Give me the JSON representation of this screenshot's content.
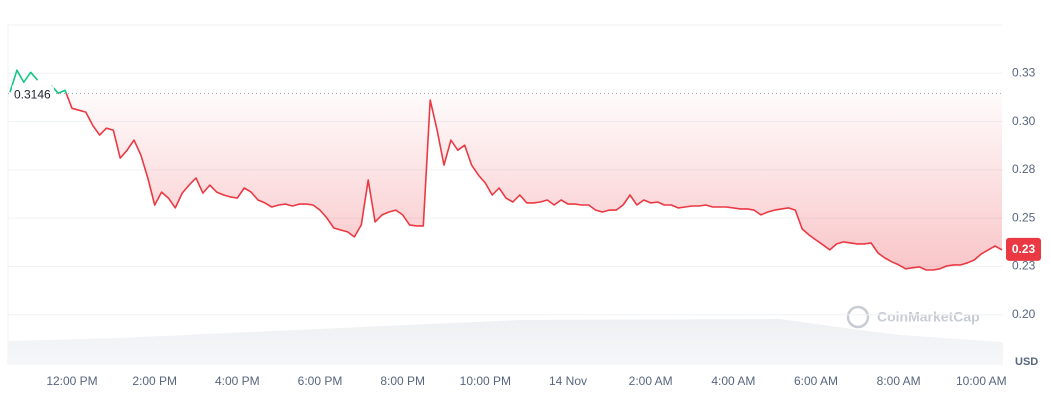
{
  "chart_data": {
    "type": "line",
    "categories": [
      null,
      null,
      null,
      null,
      null,
      null,
      null,
      null,
      null,
      "12:00 PM",
      null,
      null,
      null,
      null,
      null,
      null,
      null,
      null,
      null,
      null,
      null,
      "2:00 PM",
      null,
      null,
      null,
      null,
      null,
      null,
      null,
      null,
      null,
      null,
      null,
      "4:00 PM",
      null,
      null,
      null,
      null,
      null,
      null,
      null,
      null,
      null,
      null,
      null,
      "6:00 PM",
      null,
      null,
      null,
      null,
      null,
      null,
      null,
      null,
      null,
      null,
      null,
      "8:00 PM",
      null,
      null,
      null,
      null,
      null,
      null,
      null,
      null,
      null,
      null,
      null,
      "10:00 PM",
      null,
      null,
      null,
      null,
      null,
      null,
      null,
      null,
      null,
      null,
      null,
      "14 Nov",
      null,
      null,
      null,
      null,
      null,
      null,
      null,
      null,
      null,
      null,
      null,
      "2:00 AM",
      null,
      null,
      null,
      null,
      null,
      null,
      null,
      null,
      null,
      null,
      null,
      "4:00 AM",
      null,
      null,
      null,
      null,
      null,
      null,
      null,
      null,
      null,
      null,
      null,
      "6:00 AM",
      null,
      null,
      null,
      null,
      null,
      null,
      null,
      null,
      null,
      null,
      null,
      "8:00 AM",
      null,
      null,
      null,
      null,
      null,
      null,
      null,
      null,
      null,
      null,
      null,
      "10:00 AM",
      null,
      null,
      null
    ],
    "values": [
      0.3152,
      0.3266,
      0.3204,
      0.3255,
      0.3214,
      null,
      0.3188,
      0.3147,
      0.3162,
      0.3069,
      0.3059,
      0.3049,
      0.2981,
      0.293,
      0.2966,
      0.2956,
      0.2811,
      0.2852,
      0.2904,
      0.2826,
      0.2708,
      0.2568,
      0.2635,
      0.2604,
      0.2553,
      0.263,
      0.2671,
      0.2708,
      0.263,
      0.2671,
      0.2635,
      0.262,
      0.261,
      0.2604,
      0.2656,
      0.2635,
      0.2594,
      0.2579,
      0.2558,
      0.2568,
      0.2573,
      0.2563,
      0.2573,
      0.2573,
      0.2568,
      0.2542,
      0.2501,
      0.2449,
      0.2439,
      0.2429,
      0.2403,
      0.2465,
      0.2697,
      0.248,
      0.2517,
      0.2532,
      0.2542,
      0.2517,
      0.2465,
      0.246,
      0.246,
      0.3111,
      0.2956,
      0.2775,
      0.2904,
      0.2852,
      0.2878,
      0.2775,
      0.2723,
      0.2682,
      0.262,
      0.2656,
      0.2604,
      0.2584,
      0.262,
      0.2579,
      0.2579,
      0.2584,
      0.2594,
      0.2568,
      0.2594,
      0.2573,
      0.2573,
      0.2568,
      0.2568,
      0.2542,
      0.2532,
      0.2542,
      0.2542,
      0.2568,
      0.262,
      0.2568,
      0.2594,
      0.2579,
      0.2584,
      0.2568,
      0.2568,
      0.2553,
      0.2558,
      0.2563,
      0.2563,
      0.2568,
      0.2558,
      0.2558,
      0.2558,
      0.2553,
      0.2548,
      0.2548,
      0.2542,
      0.2517,
      0.2532,
      0.2542,
      0.2548,
      0.2553,
      0.2542,
      0.2444,
      0.2413,
      0.2387,
      0.2362,
      0.2336,
      0.2367,
      0.2377,
      0.2372,
      0.2367,
      0.2367,
      0.2372,
      0.232,
      0.2294,
      0.2274,
      0.2258,
      0.2238,
      0.2243,
      0.2248,
      0.2232,
      0.2232,
      0.2238,
      0.2253,
      0.2258,
      0.2258,
      0.2269,
      0.2284,
      0.2315,
      0.2336,
      0.2356,
      0.2336
    ],
    "up_color": "#16c784",
    "down_color": "#ea3943",
    "reference": 0.3146,
    "last_price": {
      "value": 0.2336,
      "label": "0.23"
    },
    "ylim": [
      0.174,
      0.35
    ],
    "yticks": [
      {
        "value": 0.2,
        "label": "0.20"
      },
      {
        "value": 0.225,
        "label": "0.23"
      },
      {
        "value": 0.25,
        "label": "0.25"
      },
      {
        "value": 0.275,
        "label": "0.28"
      },
      {
        "value": 0.3,
        "label": "0.30"
      },
      {
        "value": 0.325,
        "label": "0.33"
      }
    ],
    "y_axis_label": "USD",
    "watermark": "CoinMarketCap",
    "grid": true
  }
}
